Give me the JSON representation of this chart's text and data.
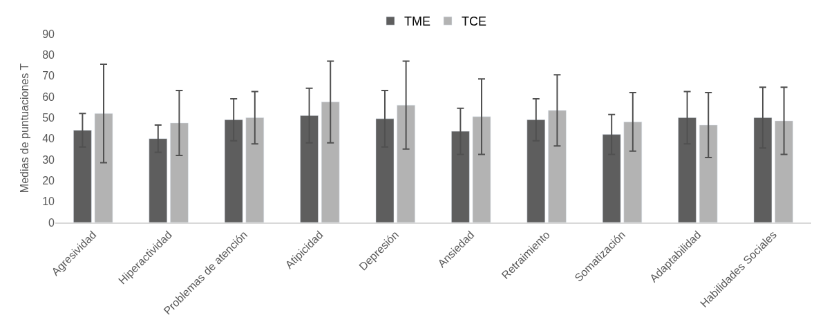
{
  "chart_data": {
    "type": "bar",
    "ylabel": "Medias de puntuaciones T",
    "categories": [
      "Agresividad",
      "Hiperactividad",
      "Problemas de atención",
      "Atipicidad",
      "Depresión",
      "Ansiedad",
      "Retraimiento",
      "Somatización",
      "Adaptabilidad",
      "Habilidades Sociales"
    ],
    "series": [
      {
        "name": "TME",
        "color": "#5e5e5e",
        "values": [
          44,
          40,
          49,
          51,
          49.5,
          43.5,
          49,
          42,
          50,
          50
        ],
        "errors": [
          8,
          6.5,
          10,
          13,
          13.5,
          11,
          10,
          9.5,
          12.5,
          14.5
        ]
      },
      {
        "name": "TCE",
        "color": "#b3b3b3",
        "values": [
          52,
          47.5,
          50,
          57.5,
          56,
          50.5,
          53.5,
          48,
          46.5,
          48.5
        ],
        "errors": [
          23.5,
          15.5,
          12.5,
          19.5,
          21,
          18,
          17,
          14,
          15.5,
          16
        ]
      }
    ],
    "ylim": [
      0,
      90
    ],
    "yticks": [
      0,
      10,
      20,
      30,
      40,
      50,
      60,
      70,
      80,
      90
    ],
    "grid": false,
    "legend": "top"
  }
}
